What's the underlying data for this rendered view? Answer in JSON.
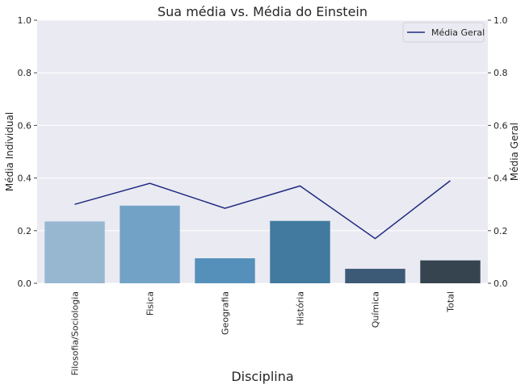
{
  "chart_data": {
    "type": "bar",
    "title": "Sua média vs. Média do Einstein",
    "xlabel": "Disciplina",
    "ylabel": "Média Individual",
    "ylabel_right": "Média Geral",
    "categories": [
      "Filosofia/Sociologia",
      "Fisica",
      "Geografia",
      "História",
      "Química",
      "Total"
    ],
    "series": [
      {
        "type": "bar",
        "axis": "left",
        "values": [
          0.235,
          0.295,
          0.095,
          0.237,
          0.055,
          0.087
        ],
        "colors": [
          "#97b7d1",
          "#72a3c6",
          "#5590bb",
          "#41799f",
          "#3c5a76",
          "#36444f"
        ]
      },
      {
        "type": "line",
        "axis": "right",
        "name": "Média Geral",
        "values": [
          0.3,
          0.38,
          0.285,
          0.37,
          0.17,
          0.39
        ],
        "color": "#1f2a80"
      }
    ],
    "ylim": [
      0,
      1.0
    ],
    "ylim_right": [
      0,
      1.0
    ],
    "yticks": [
      "0.0",
      "0.2",
      "0.4",
      "0.6",
      "0.8",
      "1.0"
    ],
    "yticks_right": [
      "0.0",
      "0.2",
      "0.4",
      "0.6",
      "0.8",
      "1.0"
    ],
    "grid": true,
    "legend": "top-right",
    "background": "#eaeaf2"
  }
}
